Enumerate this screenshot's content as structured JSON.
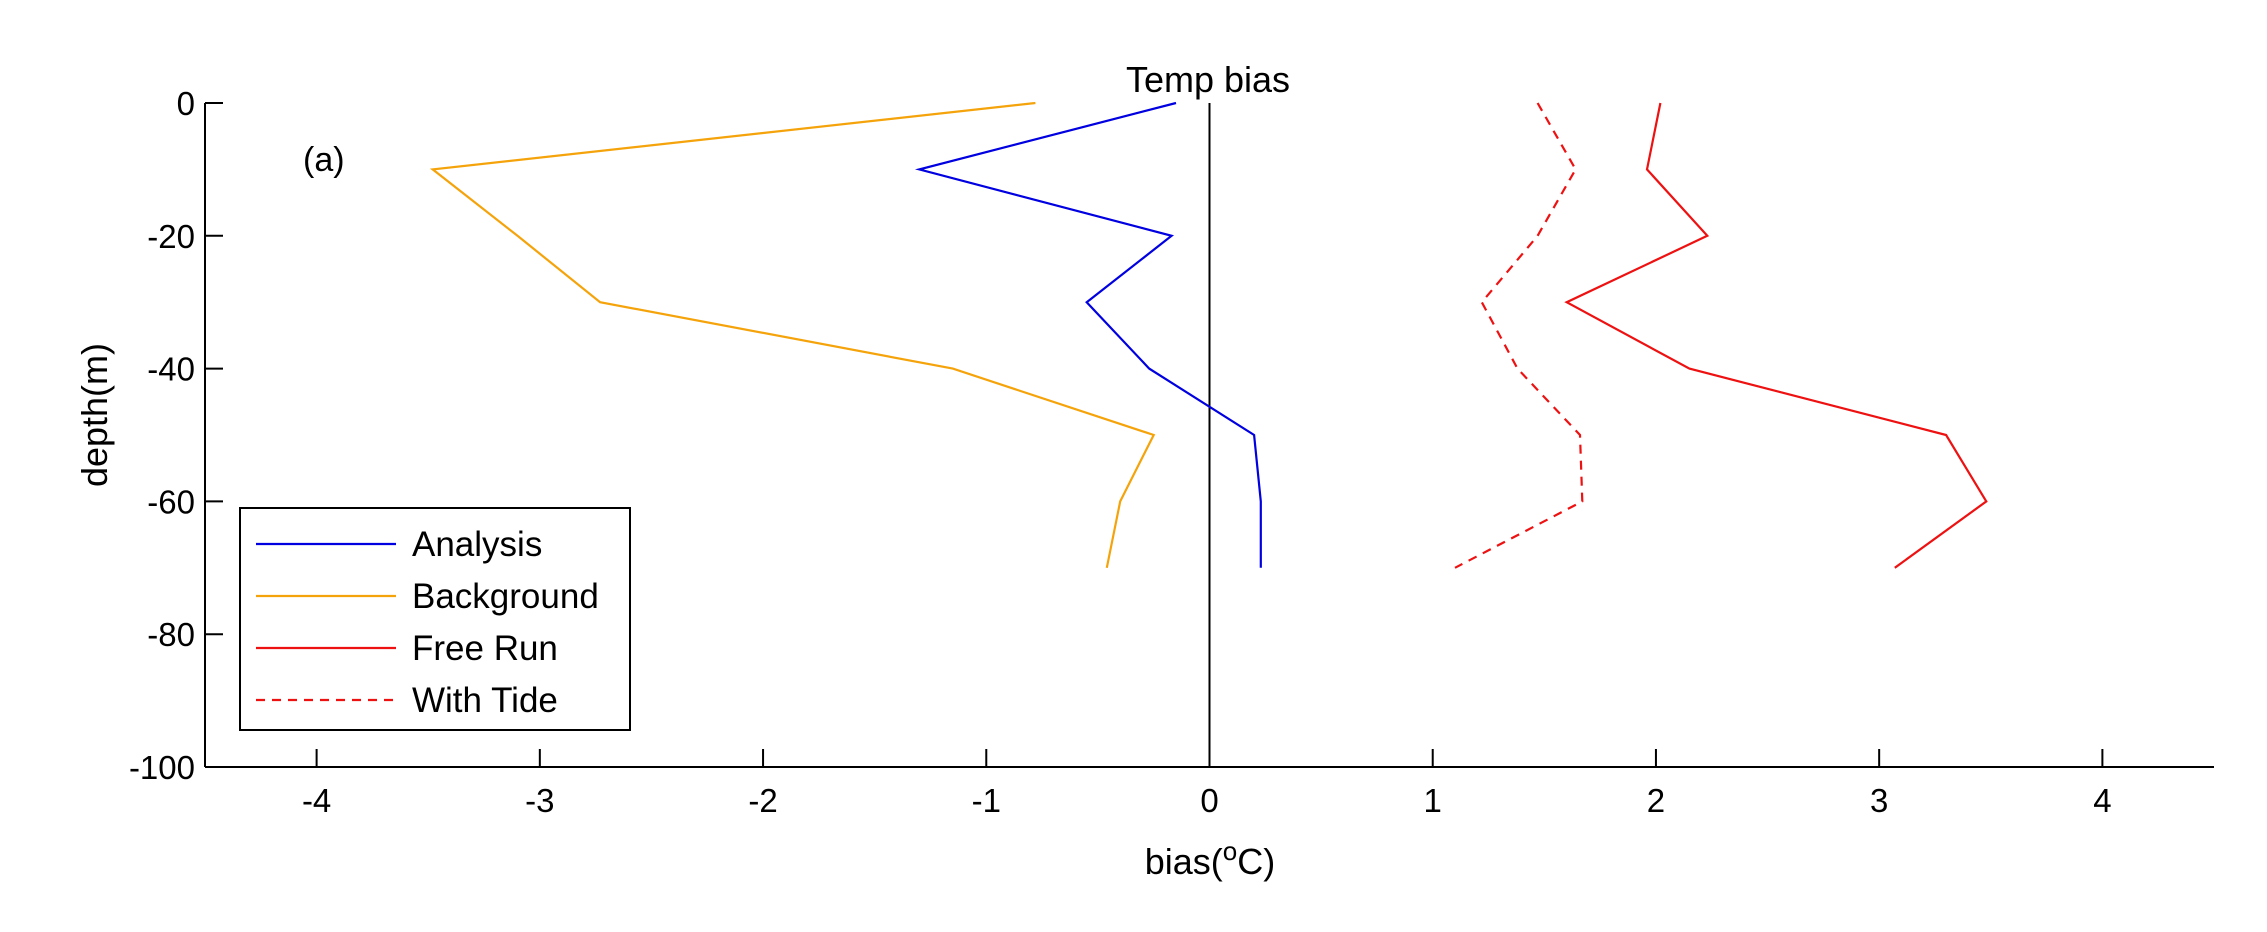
{
  "chart_data": {
    "type": "line",
    "title": "Temp bias",
    "panel_label": "(a)",
    "xlabel_base": "bias(",
    "xlabel_sup": "o",
    "xlabel_unit": "C)",
    "ylabel": "depth(m)",
    "xlim": [
      -4.5,
      4.5
    ],
    "ylim": [
      -100,
      0
    ],
    "xticks": [
      -4,
      -3,
      -2,
      -1,
      0,
      1,
      2,
      3,
      4
    ],
    "yticks": [
      0,
      -20,
      -40,
      -60,
      -80,
      -100
    ],
    "grid": false,
    "legend_position": "bottom-left",
    "reference_line_x": 0,
    "series": [
      {
        "name": "Analysis",
        "color": "#0000e0",
        "dash": "solid",
        "x": [
          -0.15,
          -1.3,
          -0.17,
          -0.55,
          -0.27,
          0.2,
          0.23,
          0.23
        ],
        "y": [
          0,
          -10,
          -20,
          -30,
          -40,
          -50,
          -60,
          -70
        ]
      },
      {
        "name": "Background",
        "color": "#f5a30a",
        "dash": "solid",
        "x": [
          -0.78,
          -3.48,
          -3.1,
          -2.73,
          -1.15,
          -0.25,
          -0.4,
          -0.46
        ],
        "y": [
          0,
          -10,
          -20,
          -30,
          -40,
          -50,
          -60,
          -70
        ]
      },
      {
        "name": "Free Run",
        "color": "#ee1111",
        "dash": "solid",
        "x": [
          2.02,
          1.96,
          2.23,
          1.6,
          2.15,
          3.3,
          3.48,
          3.07
        ],
        "y": [
          0,
          -10,
          -20,
          -30,
          -40,
          -50,
          -60,
          -70
        ]
      },
      {
        "name": "With Tide",
        "color": "#ee1111",
        "dash": "dashed",
        "x": [
          1.47,
          1.64,
          1.47,
          1.22,
          1.38,
          1.66,
          1.67,
          1.1
        ],
        "y": [
          0,
          -10,
          -20,
          -30,
          -40,
          -50,
          -60,
          -70
        ]
      }
    ]
  }
}
